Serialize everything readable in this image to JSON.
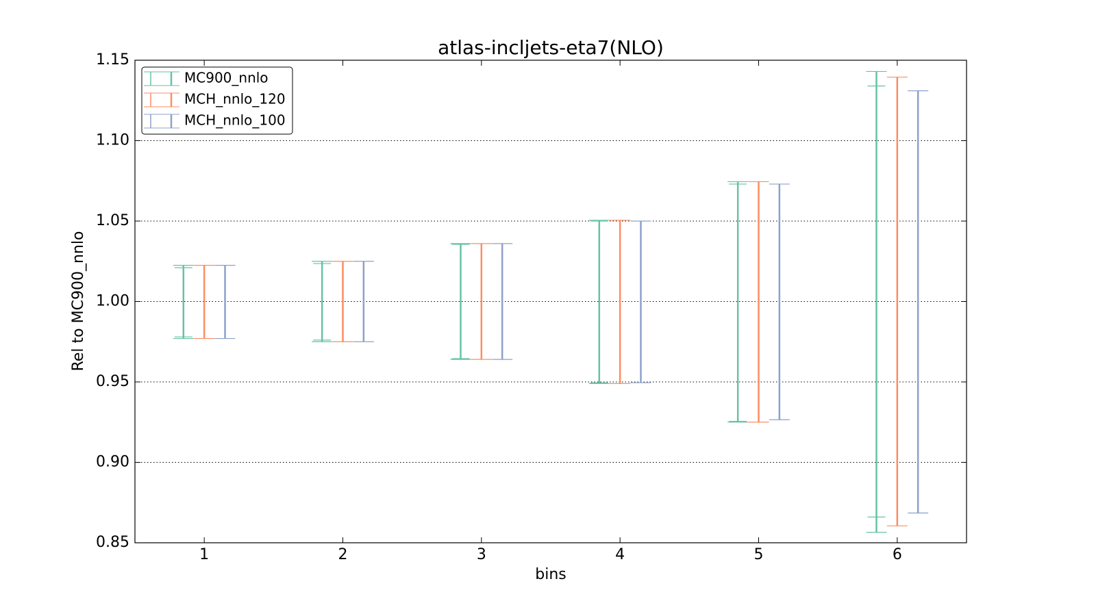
{
  "chart_data": {
    "type": "errorbar",
    "title": "atlas-incljets-eta7(NLO)",
    "x_label": "bins",
    "y_label": "Rel to MC900_nnlo",
    "x": [
      1,
      2,
      3,
      4,
      5,
      6
    ],
    "xlim": [
      0.5,
      6.5
    ],
    "xticks": [
      1,
      2,
      3,
      4,
      5,
      6
    ],
    "ylim": [
      0.85,
      1.15
    ],
    "yticks": [
      0.85,
      {
        "value": 0.9,
        "label": "0.90"
      },
      0.95,
      {
        "value": 1.0,
        "label": "1.00"
      },
      1.05,
      {
        "value": 1.1,
        "label": "1.10"
      },
      1.15
    ],
    "grid": true,
    "legend": "upper left",
    "series": [
      {
        "name": "MC900_nnlo",
        "color": "#66c2a5",
        "lower": [
          0.977,
          0.975,
          0.964,
          0.949,
          0.925,
          0.8565
        ],
        "upper": [
          1.0225,
          1.025,
          1.036,
          1.0505,
          1.0745,
          1.143
        ],
        "inner_lower": [
          0.978,
          0.976,
          0.9645,
          0.9495,
          0.9255,
          0.866
        ],
        "inner_upper": [
          1.021,
          1.0236,
          1.0355,
          1.05,
          1.073,
          1.134
        ]
      },
      {
        "name": "MCH_nnlo_120",
        "color": "#fc8d62",
        "lower": [
          0.977,
          0.975,
          0.964,
          0.949,
          0.925,
          0.8605
        ],
        "upper": [
          1.0225,
          1.025,
          1.036,
          1.0505,
          1.0745,
          1.1395
        ]
      },
      {
        "name": "MCH_nnlo_100",
        "color": "#8da0cb",
        "lower": [
          0.977,
          0.975,
          0.964,
          0.9495,
          0.9265,
          0.8685
        ],
        "upper": [
          1.0225,
          1.025,
          1.036,
          1.05,
          1.073,
          1.131
        ]
      }
    ]
  }
}
